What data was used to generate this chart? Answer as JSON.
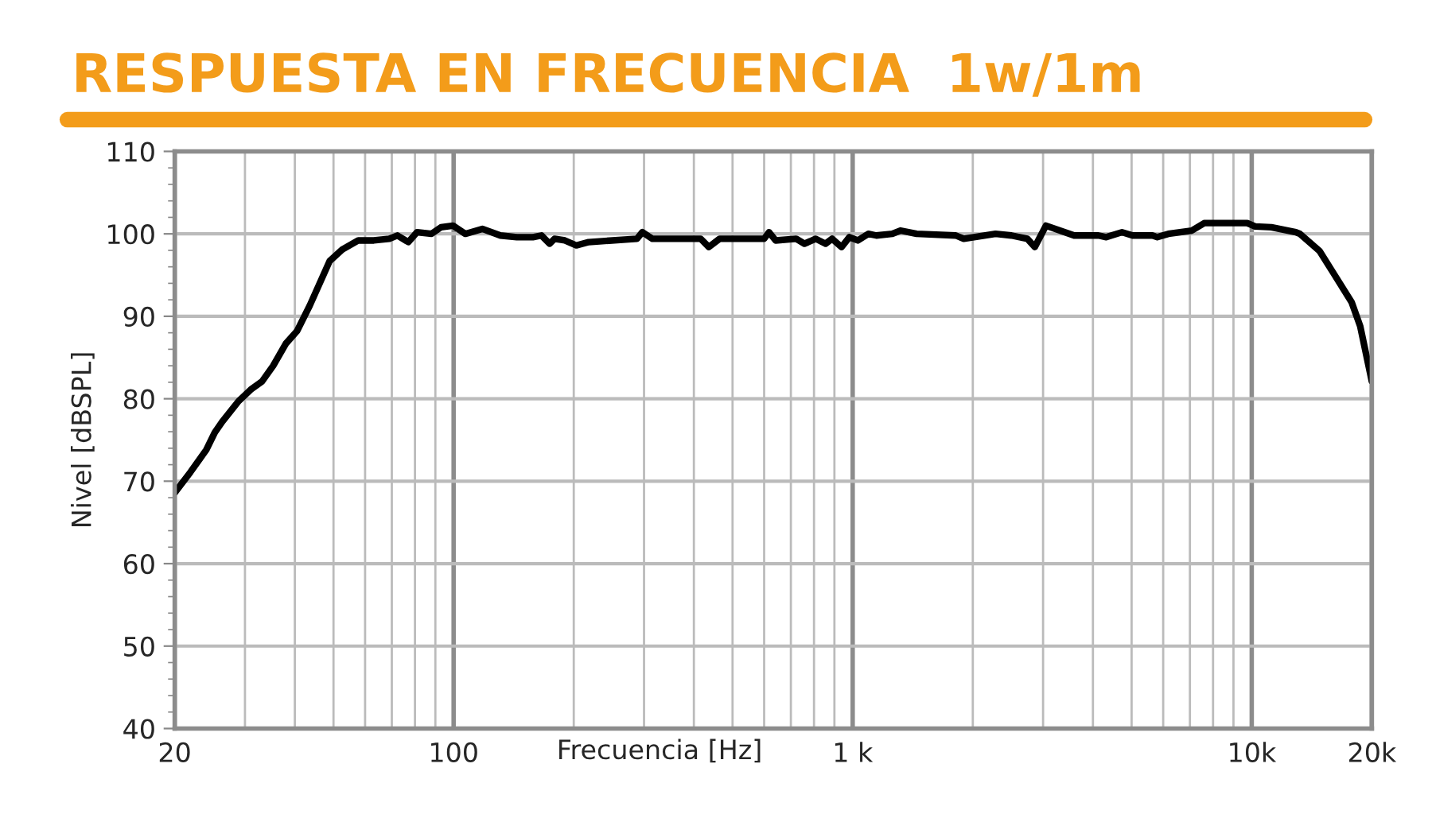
{
  "chart_data": {
    "type": "line",
    "title": "RESPUESTA EN FRECUENCIA  1w/1m",
    "xlabel": "Frecuencia [Hz]",
    "ylabel": "Nivel [dBSPL]",
    "log": "x",
    "grid": true,
    "marker": "none",
    "line_style": "solid",
    "xlim": [
      20,
      20000
    ],
    "ylim": [
      40,
      110
    ],
    "xticks": [
      20,
      100,
      {
        "value": 1000,
        "label": "1 k"
      },
      {
        "value": 10000,
        "label": "10k"
      },
      {
        "value": 20000,
        "label": "20k"
      }
    ],
    "yticks": [
      40,
      50,
      60,
      70,
      80,
      90,
      100,
      110
    ],
    "series": [
      {
        "color": "#000000",
        "x": [
          20,
          21.9,
          24,
          25.2,
          26.3,
          28.9,
          31,
          33.1,
          35.3,
          38,
          40.5,
          43.6,
          48.9,
          52.6,
          57.7,
          63.1,
          69,
          72.3,
          77,
          81,
          88,
          93,
          99.6,
          107,
          118,
          131,
          144,
          158,
          166,
          174,
          179,
          190,
          203,
          218,
          288,
          297,
          315,
          416,
          436,
          464,
          600,
          617,
          641,
          722,
          757,
          808,
          855,
          888,
          938,
          981,
          1030,
          1094,
          1146,
          1257,
          1317,
          1446,
          1813,
          1898,
          2280,
          2500,
          2740,
          2860,
          3050,
          3590,
          4130,
          4320,
          4730,
          5030,
          5640,
          5800,
          6180,
          7080,
          7600,
          8490,
          9740,
          10200,
          11200,
          12900,
          13200,
          14800,
          15900,
          17800,
          18700,
          20000
        ],
        "values": [
          68.6,
          71.1,
          73.8,
          75.9,
          77.2,
          79.7,
          81.1,
          82.1,
          84.0,
          86.7,
          88.2,
          91.3,
          96.7,
          98.1,
          99.2,
          99.2,
          99.4,
          99.8,
          99.0,
          100.2,
          100.0,
          100.8,
          101.0,
          100.0,
          100.6,
          99.8,
          99.6,
          99.6,
          99.8,
          98.8,
          99.4,
          99.2,
          98.6,
          99.0,
          99.4,
          100.2,
          99.4,
          99.4,
          98.4,
          99.4,
          99.4,
          100.2,
          99.2,
          99.4,
          98.8,
          99.4,
          98.8,
          99.4,
          98.4,
          99.6,
          99.2,
          100.0,
          99.8,
          100.0,
          100.4,
          100.0,
          99.8,
          99.4,
          100.0,
          99.8,
          99.4,
          98.4,
          101.0,
          99.8,
          99.8,
          99.6,
          100.2,
          99.8,
          99.8,
          99.6,
          100.0,
          100.4,
          101.3,
          101.3,
          101.3,
          100.9,
          100.8,
          100.2,
          100.0,
          97.9,
          95.5,
          91.7,
          88.8,
          82.1
        ]
      }
    ]
  }
}
